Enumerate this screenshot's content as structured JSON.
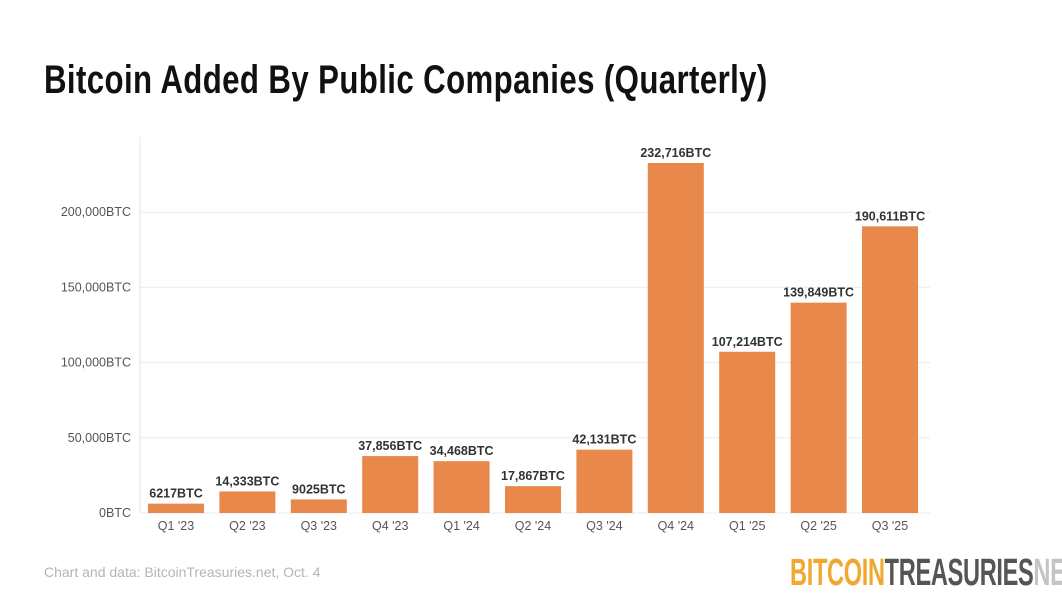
{
  "chart_data": {
    "type": "bar",
    "title": "Bitcoin Added By Public Companies (Quarterly)",
    "categories": [
      "Q1 '23",
      "Q2 '23",
      "Q3 '23",
      "Q4 '23",
      "Q1 '24",
      "Q2 '24",
      "Q3 '24",
      "Q4 '24",
      "Q1 '25",
      "Q2 '25",
      "Q3 '25"
    ],
    "values": [
      6217,
      14333,
      9025,
      37856,
      34468,
      17867,
      42131,
      232716,
      107214,
      139849,
      190611
    ],
    "data_labels": [
      "6217BTC",
      "14,333BTC",
      "9025BTC",
      "37,856BTC",
      "34,468BTC",
      "17,867BTC",
      "42,131BTC",
      "232,716BTC",
      "107,214BTC",
      "139,849BTC",
      "190,611BTC"
    ],
    "yticks": [
      0,
      50000,
      100000,
      150000,
      200000
    ],
    "ytick_labels": [
      "0BTC",
      "50,000BTC",
      "100,000BTC",
      "150,000BTC",
      "200,000BTC"
    ],
    "ylim": [
      0,
      250000
    ],
    "xlabel": "",
    "ylabel": "",
    "grid": "horizontal",
    "bar_color": "#e8884a"
  },
  "footer": {
    "source": "Chart and data: BitcoinTreasuries.net, Oct. 4",
    "logo": {
      "part1": "BITCOIN",
      "part2": "TREASURIES",
      "part3": "NET"
    }
  }
}
